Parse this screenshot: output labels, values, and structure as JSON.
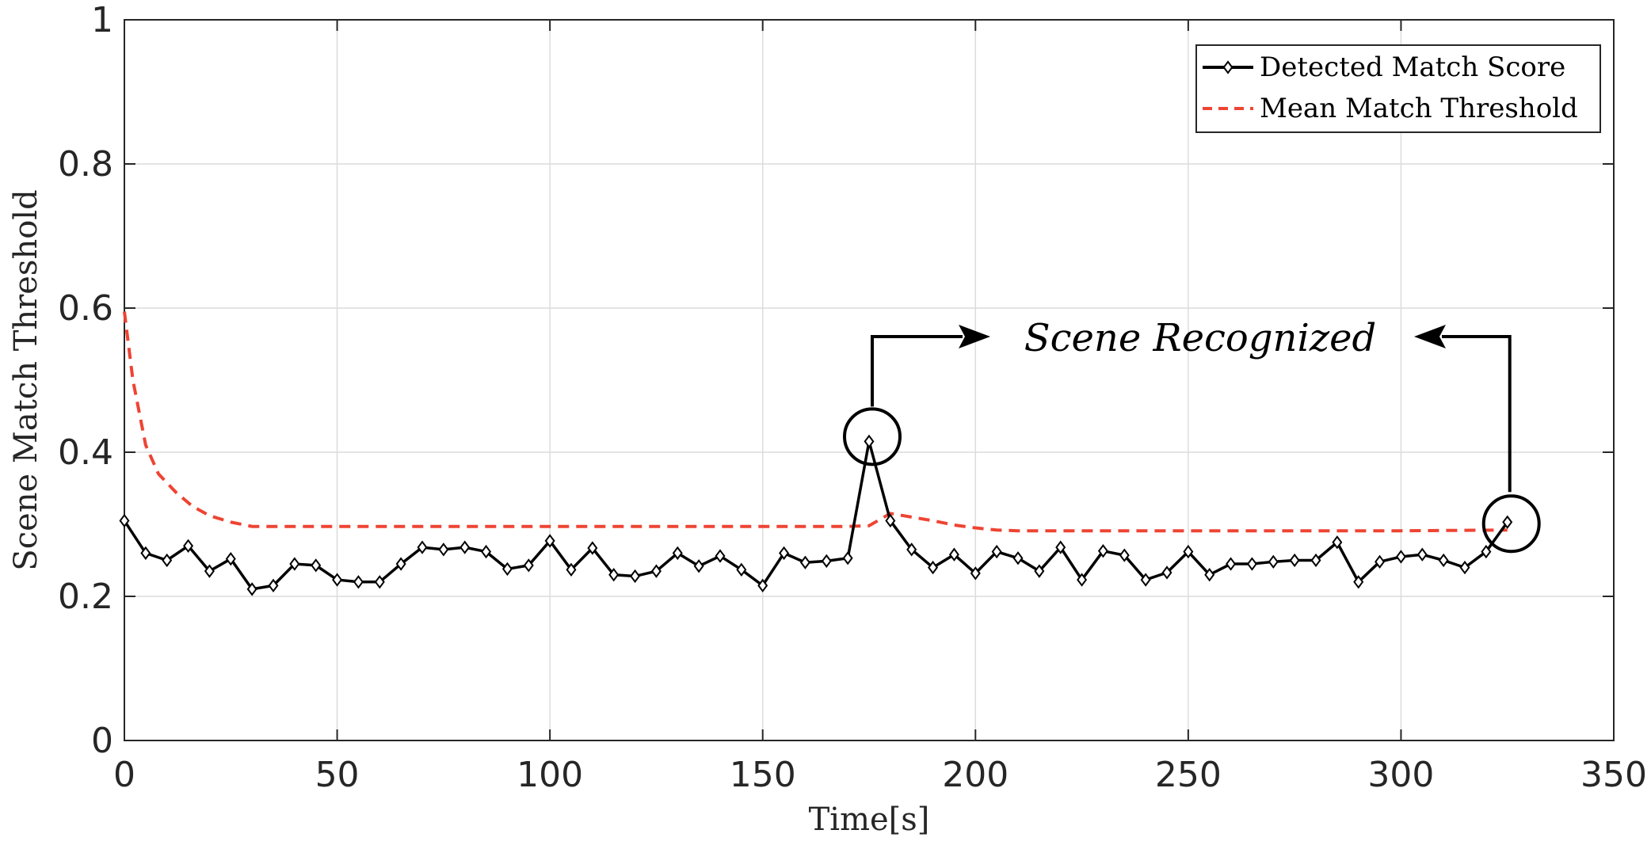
{
  "chart_data": {
    "type": "line",
    "xlabel": "Time[s]",
    "ylabel": "Scene Match Threshold",
    "xlim": [
      0,
      350
    ],
    "ylim": [
      0,
      1
    ],
    "xticks": [
      0,
      50,
      100,
      150,
      200,
      250,
      300,
      350
    ],
    "yticks": [
      0,
      0.2,
      0.4,
      0.6,
      0.8,
      1
    ],
    "ytick_labels": [
      "0",
      "0.2",
      "0.4",
      "0.6",
      "0.8",
      "1"
    ],
    "grid": true,
    "legend_position": "top-right",
    "series": [
      {
        "name": "Detected Match Score",
        "color": "#000000",
        "style": "solid",
        "marker": "diamond",
        "x": [
          0,
          5,
          10,
          15,
          20,
          25,
          30,
          35,
          40,
          45,
          50,
          55,
          60,
          65,
          70,
          75,
          80,
          85,
          90,
          95,
          100,
          105,
          110,
          115,
          120,
          125,
          130,
          135,
          140,
          145,
          150,
          155,
          160,
          165,
          170,
          175,
          180,
          185,
          190,
          195,
          200,
          205,
          210,
          215,
          220,
          225,
          230,
          235,
          240,
          245,
          250,
          255,
          260,
          265,
          270,
          275,
          280,
          285,
          290,
          295,
          300,
          305,
          310,
          315,
          320,
          325
        ],
        "y": [
          0.305,
          0.26,
          0.25,
          0.27,
          0.235,
          0.252,
          0.21,
          0.215,
          0.245,
          0.243,
          0.223,
          0.22,
          0.22,
          0.245,
          0.268,
          0.265,
          0.268,
          0.262,
          0.238,
          0.243,
          0.277,
          0.237,
          0.267,
          0.23,
          0.228,
          0.235,
          0.26,
          0.242,
          0.256,
          0.237,
          0.215,
          0.26,
          0.247,
          0.249,
          0.253,
          0.415,
          0.305,
          0.265,
          0.24,
          0.258,
          0.232,
          0.262,
          0.253,
          0.235,
          0.268,
          0.223,
          0.263,
          0.257,
          0.223,
          0.233,
          0.262,
          0.23,
          0.245,
          0.245,
          0.248,
          0.25,
          0.25,
          0.275,
          0.22,
          0.248,
          0.255,
          0.258,
          0.25,
          0.24,
          0.262,
          0.303
        ]
      },
      {
        "name": "Mean Match Threshold",
        "color": "#ee4433",
        "style": "dashed",
        "x": [
          0,
          2,
          5,
          8,
          12,
          16,
          20,
          25,
          30,
          60,
          100,
          150,
          170,
          175,
          180,
          185,
          190,
          195,
          200,
          205,
          210,
          250,
          300,
          325
        ],
        "y": [
          0.595,
          0.5,
          0.41,
          0.37,
          0.345,
          0.325,
          0.312,
          0.303,
          0.297,
          0.297,
          0.297,
          0.297,
          0.297,
          0.298,
          0.315,
          0.31,
          0.305,
          0.299,
          0.295,
          0.292,
          0.291,
          0.291,
          0.291,
          0.292
        ]
      }
    ],
    "annotations": [
      {
        "text": "Scene Recognized",
        "targets": [
          [
            175,
            0.415
          ],
          [
            325,
            0.303
          ]
        ]
      }
    ]
  }
}
